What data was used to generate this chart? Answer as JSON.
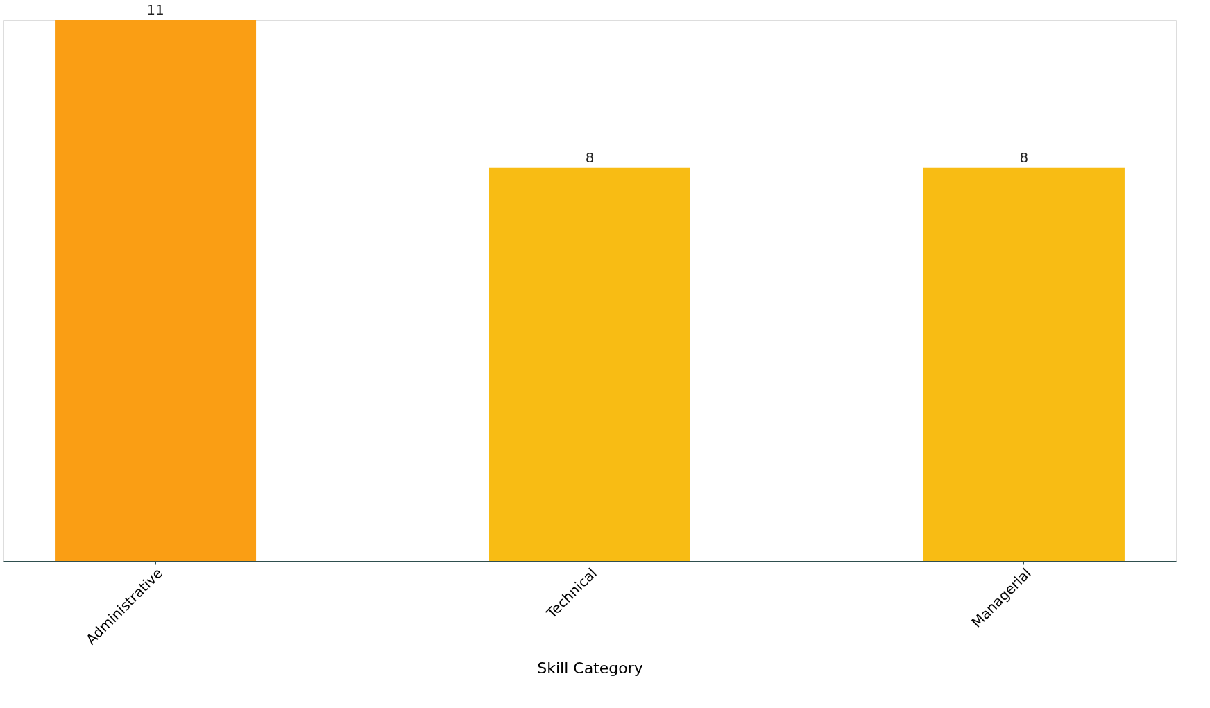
{
  "chart_data": {
    "type": "bar",
    "xlabel": "Skill Category",
    "categories": [
      "Administrative",
      "Technical",
      "Managerial"
    ],
    "values": [
      11,
      8,
      8
    ],
    "colors": [
      "#fa9e14",
      "#f8bc14",
      "#f8bc14"
    ],
    "data_labels": true,
    "tick_labels": "x"
  }
}
